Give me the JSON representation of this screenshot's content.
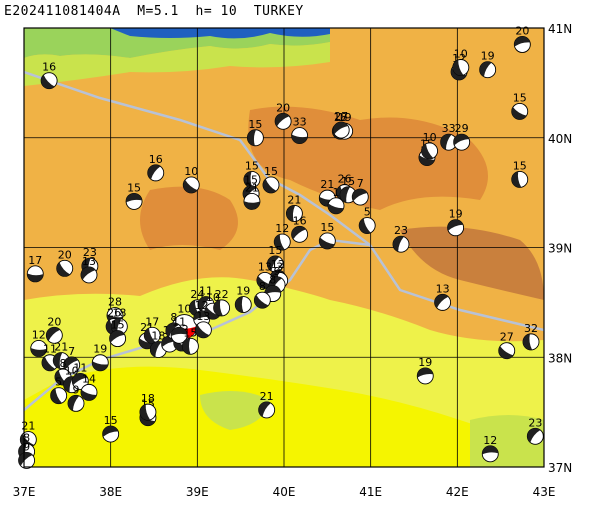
{
  "title": "E202411081404A  M=5.1  h= 10  TURKEY",
  "map": {
    "lon_range": [
      37,
      43
    ],
    "lat_range": [
      37,
      41
    ],
    "lon_ticks": [
      "37E",
      "38E",
      "39E",
      "40E",
      "41E",
      "42E",
      "43E"
    ],
    "lat_ticks": [
      "41N",
      "40N",
      "39N",
      "38N",
      "37N"
    ],
    "colors": {
      "lowland_yellow": "#f5f500",
      "plain_yellow": "#eef24a",
      "upland_orange": "#f0b245",
      "mountain_orange": "#e08e3a",
      "peak_brown": "#c9803d",
      "coast_green": "#9ad35b",
      "light_green": "#c9e34c",
      "sea_blue": "#2060c0",
      "fault_gray": "#b8c2d6",
      "focal_dark": "#202020",
      "focal_highlight": "#ff0000",
      "grid_line": "#000000"
    }
  },
  "events": [
    {
      "lon": 38.85,
      "lat": 38.28,
      "depth": "10",
      "main": true
    },
    {
      "lon": 37.29,
      "lat": 40.52,
      "depth": "16"
    },
    {
      "lon": 39.67,
      "lat": 40.0,
      "depth": "15"
    },
    {
      "lon": 39.99,
      "lat": 40.15,
      "depth": "20"
    },
    {
      "lon": 40.18,
      "lat": 40.02,
      "depth": "33"
    },
    {
      "lon": 40.65,
      "lat": 40.06,
      "depth": "18"
    },
    {
      "lon": 40.7,
      "lat": 40.06,
      "depth": "19"
    },
    {
      "lon": 40.66,
      "lat": 40.07,
      "depth": "27"
    },
    {
      "lon": 41.65,
      "lat": 39.82,
      "depth": "15"
    },
    {
      "lon": 41.68,
      "lat": 39.88,
      "depth": "10"
    },
    {
      "lon": 41.9,
      "lat": 39.96,
      "depth": "33"
    },
    {
      "lon": 42.05,
      "lat": 39.96,
      "depth": "29"
    },
    {
      "lon": 42.02,
      "lat": 40.6,
      "depth": "12"
    },
    {
      "lon": 42.04,
      "lat": 40.64,
      "depth": "10"
    },
    {
      "lon": 42.35,
      "lat": 40.62,
      "depth": "19"
    },
    {
      "lon": 42.75,
      "lat": 40.85,
      "depth": "20"
    },
    {
      "lon": 42.72,
      "lat": 40.24,
      "depth": "15"
    },
    {
      "lon": 42.72,
      "lat": 39.62,
      "depth": "15"
    },
    {
      "lon": 38.52,
      "lat": 39.68,
      "depth": "16"
    },
    {
      "lon": 38.27,
      "lat": 39.42,
      "depth": "15"
    },
    {
      "lon": 38.93,
      "lat": 39.57,
      "depth": "10"
    },
    {
      "lon": 39.63,
      "lat": 39.62,
      "depth": "15"
    },
    {
      "lon": 39.62,
      "lat": 39.49,
      "depth": "15"
    },
    {
      "lon": 39.63,
      "lat": 39.42,
      "depth": "21"
    },
    {
      "lon": 39.85,
      "lat": 39.57,
      "depth": "15"
    },
    {
      "lon": 40.12,
      "lat": 39.31,
      "depth": "21"
    },
    {
      "lon": 40.18,
      "lat": 39.12,
      "depth": "16"
    },
    {
      "lon": 40.5,
      "lat": 39.45,
      "depth": "21"
    },
    {
      "lon": 40.7,
      "lat": 39.5,
      "depth": "26"
    },
    {
      "lon": 40.74,
      "lat": 39.48,
      "depth": "15"
    },
    {
      "lon": 40.88,
      "lat": 39.46,
      "depth": "7"
    },
    {
      "lon": 40.6,
      "lat": 39.38,
      "depth": "1"
    },
    {
      "lon": 40.96,
      "lat": 39.2,
      "depth": "5"
    },
    {
      "lon": 41.35,
      "lat": 39.03,
      "depth": "23"
    },
    {
      "lon": 41.98,
      "lat": 39.18,
      "depth": "19"
    },
    {
      "lon": 40.5,
      "lat": 39.06,
      "depth": "15"
    },
    {
      "lon": 39.98,
      "lat": 39.05,
      "depth": "12"
    },
    {
      "lon": 39.9,
      "lat": 38.85,
      "depth": "15"
    },
    {
      "lon": 39.93,
      "lat": 38.72,
      "depth": "12"
    },
    {
      "lon": 39.78,
      "lat": 38.7,
      "depth": "13"
    },
    {
      "lon": 39.95,
      "lat": 38.7,
      "depth": "3"
    },
    {
      "lon": 39.92,
      "lat": 38.66,
      "depth": "9"
    },
    {
      "lon": 39.87,
      "lat": 38.58,
      "depth": "8"
    },
    {
      "lon": 39.75,
      "lat": 38.52,
      "depth": "8"
    },
    {
      "lon": 39.53,
      "lat": 38.48,
      "depth": "19"
    },
    {
      "lon": 41.83,
      "lat": 38.5,
      "depth": "13"
    },
    {
      "lon": 37.13,
      "lat": 38.76,
      "depth": "17"
    },
    {
      "lon": 37.47,
      "lat": 38.81,
      "depth": "20"
    },
    {
      "lon": 37.76,
      "lat": 38.83,
      "depth": "23"
    },
    {
      "lon": 37.75,
      "lat": 38.75,
      "depth": "13"
    },
    {
      "lon": 38.05,
      "lat": 38.38,
      "depth": "28"
    },
    {
      "lon": 38.04,
      "lat": 38.28,
      "depth": "26"
    },
    {
      "lon": 38.1,
      "lat": 38.28,
      "depth": "18"
    },
    {
      "lon": 38.08,
      "lat": 38.17,
      "depth": "15"
    },
    {
      "lon": 38.42,
      "lat": 38.15,
      "depth": "21"
    },
    {
      "lon": 38.48,
      "lat": 38.2,
      "depth": "17"
    },
    {
      "lon": 38.55,
      "lat": 38.07,
      "depth": "18"
    },
    {
      "lon": 38.68,
      "lat": 38.12,
      "depth": "14"
    },
    {
      "lon": 38.82,
      "lat": 38.13,
      "depth": "12"
    },
    {
      "lon": 39.0,
      "lat": 38.45,
      "depth": "24"
    },
    {
      "lon": 39.1,
      "lat": 38.48,
      "depth": "11"
    },
    {
      "lon": 39.05,
      "lat": 38.35,
      "depth": "12"
    },
    {
      "lon": 39.18,
      "lat": 38.42,
      "depth": "10"
    },
    {
      "lon": 39.28,
      "lat": 38.45,
      "depth": "22"
    },
    {
      "lon": 38.73,
      "lat": 38.24,
      "depth": "8"
    },
    {
      "lon": 38.79,
      "lat": 38.2,
      "depth": "11"
    },
    {
      "lon": 39.07,
      "lat": 38.25,
      "depth": "13"
    },
    {
      "lon": 38.92,
      "lat": 38.1,
      "depth": "15"
    },
    {
      "lon": 37.35,
      "lat": 38.2,
      "depth": "20"
    },
    {
      "lon": 37.17,
      "lat": 38.08,
      "depth": "12"
    },
    {
      "lon": 37.3,
      "lat": 37.95,
      "depth": "11"
    },
    {
      "lon": 37.43,
      "lat": 37.97,
      "depth": "21"
    },
    {
      "lon": 37.55,
      "lat": 37.93,
      "depth": "7"
    },
    {
      "lon": 37.88,
      "lat": 37.95,
      "depth": "19"
    },
    {
      "lon": 37.45,
      "lat": 37.82,
      "depth": "8"
    },
    {
      "lon": 37.55,
      "lat": 37.75,
      "depth": "10"
    },
    {
      "lon": 37.65,
      "lat": 37.78,
      "depth": "11"
    },
    {
      "lon": 37.75,
      "lat": 37.68,
      "depth": "14"
    },
    {
      "lon": 37.4,
      "lat": 37.65,
      "depth": "5"
    },
    {
      "lon": 37.6,
      "lat": 37.58,
      "depth": "9"
    },
    {
      "lon": 38.0,
      "lat": 37.3,
      "depth": "15"
    },
    {
      "lon": 38.43,
      "lat": 37.45,
      "depth": "15"
    },
    {
      "lon": 38.43,
      "lat": 37.5,
      "depth": "18"
    },
    {
      "lon": 39.8,
      "lat": 37.52,
      "depth": "21"
    },
    {
      "lon": 41.63,
      "lat": 37.83,
      "depth": "19"
    },
    {
      "lon": 42.57,
      "lat": 38.06,
      "depth": "27"
    },
    {
      "lon": 42.85,
      "lat": 38.14,
      "depth": "32"
    },
    {
      "lon": 42.9,
      "lat": 37.28,
      "depth": "23"
    },
    {
      "lon": 42.38,
      "lat": 37.12,
      "depth": "12"
    },
    {
      "lon": 37.05,
      "lat": 37.25,
      "depth": "21"
    },
    {
      "lon": 37.03,
      "lat": 37.14,
      "depth": "8"
    },
    {
      "lon": 37.03,
      "lat": 37.06,
      "depth": "9"
    }
  ]
}
